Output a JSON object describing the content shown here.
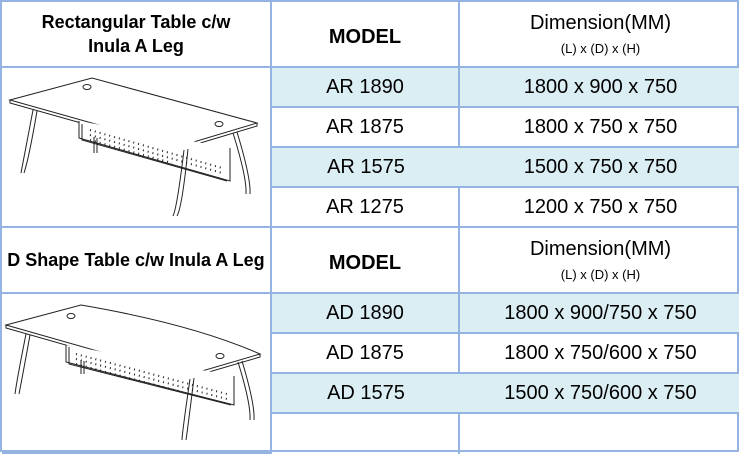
{
  "sections": [
    {
      "title": "Rectangular Table c/w Inula A Leg",
      "model_header": "MODEL",
      "dim_header": "Dimension(MM)",
      "dim_sub": "(L) x (D) x (H)",
      "rows": [
        {
          "model": "AR 1890",
          "dim": "1800 x 900 x 750"
        },
        {
          "model": "AR 1875",
          "dim": "1800 x 750 x 750"
        },
        {
          "model": "AR 1575",
          "dim": "1500 x 750 x 750"
        },
        {
          "model": "AR 1275",
          "dim": "1200 x 750 x 750"
        }
      ]
    },
    {
      "title": "D Shape Table c/w Inula A Leg",
      "model_header": "MODEL",
      "dim_header": "Dimension(MM)",
      "dim_sub": "(L) x (D) x (H)",
      "rows": [
        {
          "model": "AD 1890",
          "dim": "1800 x 900/750 x 750"
        },
        {
          "model": "AD 1875",
          "dim": "1800 x 750/600 x 750"
        },
        {
          "model": "AD 1575",
          "dim": "1500 x 750/600 x 750"
        },
        {
          "model": "",
          "dim": ""
        }
      ]
    }
  ],
  "colors": {
    "border": "#95b3e0",
    "row_shade": "#dbeef4"
  }
}
